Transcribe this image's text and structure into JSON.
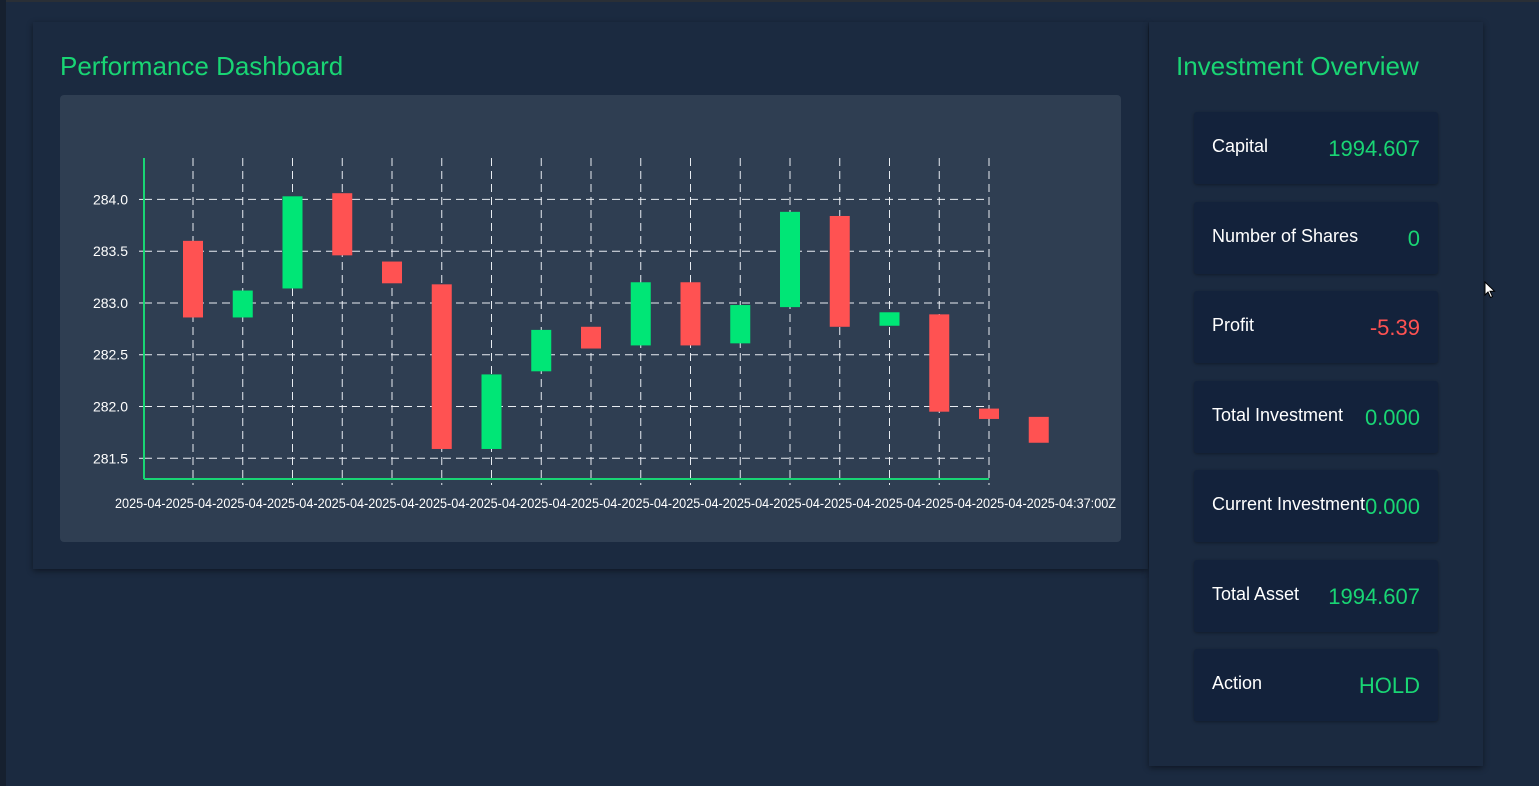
{
  "dashboard": {
    "title": "Performance Dashboard"
  },
  "overview": {
    "title": "Investment Overview",
    "metrics": [
      {
        "label": "Capital",
        "value": "1994.607",
        "status": "positive"
      },
      {
        "label": "Number of Shares",
        "value": "0",
        "status": "positive"
      },
      {
        "label": "Profit",
        "value": "-5.39",
        "status": "negative"
      },
      {
        "label": "Total Investment",
        "value": "0.000",
        "status": "positive"
      },
      {
        "label": "Current Investment",
        "value": "0.000",
        "status": "positive"
      },
      {
        "label": "Total Asset",
        "value": "1994.607",
        "status": "positive"
      },
      {
        "label": "Action",
        "value": "HOLD",
        "status": "positive"
      }
    ]
  },
  "colors": {
    "accent": "#19d574",
    "up": "#00e676",
    "down": "#ff5252",
    "background": "#1b2a40",
    "chart_background": "#2f3e52",
    "card_background": "#13223b"
  },
  "chart_data": {
    "type": "candlestick",
    "ylim": [
      281.3,
      284.4
    ],
    "yticks": [
      "284.0",
      "283.5",
      "283.0",
      "282.5",
      "282.0",
      "281.5"
    ],
    "x_label_last_visible": "2025-04-…T…37:00Z",
    "x_labels_overlapping_text": "2025-04-2025-04-2025-04-2025-04-2025-04-2025-04-2025-04-2025-04-2025-04-2025-04-2025-04-2025-04-2025-04-2025-04-2025-04-2025-04-2025-04-2025-04-2025-04:37:00Z",
    "candles": [
      {
        "open": 283.6,
        "close": 282.86
      },
      {
        "open": 282.86,
        "close": 283.12
      },
      {
        "open": 283.14,
        "close": 284.03
      },
      {
        "open": 284.06,
        "close": 283.46
      },
      {
        "open": 283.4,
        "close": 283.19
      },
      {
        "open": 283.18,
        "close": 281.59
      },
      {
        "open": 281.59,
        "close": 282.31
      },
      {
        "open": 282.34,
        "close": 282.74
      },
      {
        "open": 282.77,
        "close": 282.56
      },
      {
        "open": 282.59,
        "close": 283.2
      },
      {
        "open": 283.2,
        "close": 282.59
      },
      {
        "open": 282.61,
        "close": 282.98
      },
      {
        "open": 282.96,
        "close": 283.88
      },
      {
        "open": 283.84,
        "close": 282.77
      },
      {
        "open": 282.78,
        "close": 282.91
      },
      {
        "open": 282.89,
        "close": 281.95
      },
      {
        "open": 281.98,
        "close": 281.88
      },
      {
        "open": 281.9,
        "close": 281.65
      }
    ]
  }
}
